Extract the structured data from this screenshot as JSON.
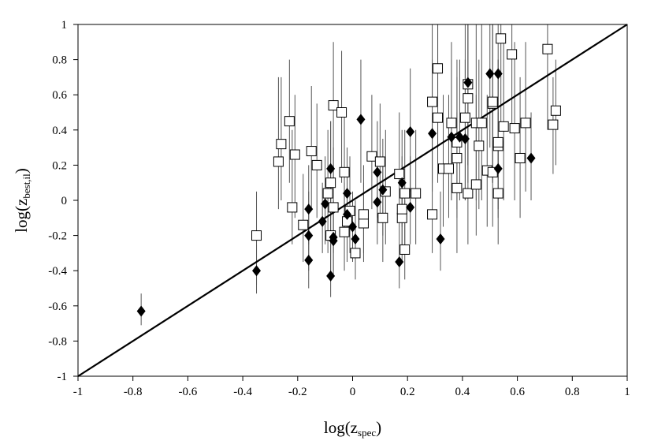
{
  "chart_data": {
    "type": "scatter",
    "title": "",
    "xlabel": {
      "base": "log(z",
      "sub": "spec",
      "close": ")"
    },
    "ylabel": {
      "base": "log(z",
      "sub": "best,il",
      "close": ")"
    },
    "xlim": [
      -1,
      1
    ],
    "ylim": [
      -1,
      1
    ],
    "xticks": [
      "-1",
      "-0.8",
      "-0.6",
      "-0.4",
      "-0.2",
      "0",
      "0.2",
      "0.4",
      "0.6",
      "0.8",
      "1"
    ],
    "yticks": [
      "-1",
      "-0.8",
      "-0.6",
      "-0.4",
      "-0.2",
      "0",
      "0.2",
      "0.4",
      "0.6",
      "0.8",
      "1"
    ],
    "xtick_values": [
      -1,
      -0.8,
      -0.6,
      -0.4,
      -0.2,
      0,
      0.2,
      0.4,
      0.6,
      0.8,
      1
    ],
    "ytick_values": [
      -1,
      -0.8,
      -0.6,
      -0.4,
      -0.2,
      0,
      0.2,
      0.4,
      0.6,
      0.8,
      1
    ],
    "grid": false,
    "reference_line": {
      "from": [
        -1,
        -1
      ],
      "to": [
        1,
        1
      ]
    },
    "series": [
      {
        "marker": "open-square",
        "points": [
          {
            "x": -0.35,
            "y": -0.2,
            "lo": -0.48,
            "hi": 0.05
          },
          {
            "x": -0.27,
            "y": 0.22,
            "lo": -0.05,
            "hi": 0.7
          },
          {
            "x": -0.26,
            "y": 0.32,
            "lo": 0.0,
            "hi": 0.7
          },
          {
            "x": -0.23,
            "y": 0.45,
            "lo": 0.1,
            "hi": 0.8
          },
          {
            "x": -0.22,
            "y": -0.04,
            "lo": -0.25,
            "hi": 0.4
          },
          {
            "x": -0.21,
            "y": 0.26,
            "lo": -0.1,
            "hi": 0.6
          },
          {
            "x": -0.18,
            "y": -0.14,
            "lo": -0.35,
            "hi": 0.15
          },
          {
            "x": -0.15,
            "y": 0.28,
            "lo": -0.05,
            "hi": 0.65
          },
          {
            "x": -0.13,
            "y": 0.2,
            "lo": -0.1,
            "hi": 0.55
          },
          {
            "x": -0.09,
            "y": 0.04,
            "lo": -0.3,
            "hi": 0.4
          },
          {
            "x": -0.08,
            "y": 0.1,
            "lo": -0.2,
            "hi": 0.45
          },
          {
            "x": -0.08,
            "y": -0.2,
            "lo": -0.4,
            "hi": 0.1
          },
          {
            "x": -0.07,
            "y": 0.54,
            "lo": 0.1,
            "hi": 0.9
          },
          {
            "x": -0.07,
            "y": -0.04,
            "lo": -0.3,
            "hi": 0.3
          },
          {
            "x": -0.04,
            "y": 0.5,
            "lo": 0.1,
            "hi": 0.85
          },
          {
            "x": -0.03,
            "y": 0.16,
            "lo": -0.1,
            "hi": 0.5
          },
          {
            "x": -0.03,
            "y": -0.18,
            "lo": -0.4,
            "hi": 0.1
          },
          {
            "x": -0.02,
            "y": -0.12,
            "lo": -0.35,
            "hi": 0.2
          },
          {
            "x": -0.01,
            "y": -0.06,
            "lo": -0.3,
            "hi": 0.25
          },
          {
            "x": 0.01,
            "y": -0.3,
            "lo": -0.45,
            "hi": 0.0
          },
          {
            "x": 0.04,
            "y": -0.13,
            "lo": -0.35,
            "hi": 0.1
          },
          {
            "x": 0.04,
            "y": -0.08,
            "lo": -0.3,
            "hi": 0.2
          },
          {
            "x": 0.07,
            "y": 0.25,
            "lo": -0.05,
            "hi": 0.6
          },
          {
            "x": 0.1,
            "y": 0.22,
            "lo": -0.1,
            "hi": 0.55
          },
          {
            "x": 0.11,
            "y": -0.1,
            "lo": -0.35,
            "hi": 0.2
          },
          {
            "x": 0.12,
            "y": 0.05,
            "lo": -0.25,
            "hi": 0.4
          },
          {
            "x": 0.17,
            "y": 0.15,
            "lo": -0.15,
            "hi": 0.5
          },
          {
            "x": 0.18,
            "y": -0.1,
            "lo": -0.35,
            "hi": 0.2
          },
          {
            "x": 0.18,
            "y": -0.05,
            "lo": -0.3,
            "hi": 0.25
          },
          {
            "x": 0.19,
            "y": -0.28,
            "lo": -0.45,
            "hi": 0.0
          },
          {
            "x": 0.19,
            "y": 0.04,
            "lo": -0.25,
            "hi": 0.4
          },
          {
            "x": 0.23,
            "y": 0.04,
            "lo": -0.25,
            "hi": 0.4
          },
          {
            "x": 0.29,
            "y": -0.08,
            "lo": -0.3,
            "hi": 0.4
          },
          {
            "x": 0.29,
            "y": 0.56,
            "lo": 0.1,
            "hi": 1.0
          },
          {
            "x": 0.31,
            "y": 0.47,
            "lo": 0.1,
            "hi": 1.0
          },
          {
            "x": 0.31,
            "y": 0.75,
            "lo": 0.3,
            "hi": 1.0
          },
          {
            "x": 0.33,
            "y": 0.18,
            "lo": -0.15,
            "hi": 0.6
          },
          {
            "x": 0.35,
            "y": 0.18,
            "lo": -0.1,
            "hi": 0.6
          },
          {
            "x": 0.36,
            "y": 0.44,
            "lo": 0.0,
            "hi": 0.9
          },
          {
            "x": 0.38,
            "y": 0.33,
            "lo": -0.05,
            "hi": 0.8
          },
          {
            "x": 0.38,
            "y": 0.07,
            "lo": -0.3,
            "hi": 0.5
          },
          {
            "x": 0.38,
            "y": 0.24,
            "lo": -0.1,
            "hi": 0.7
          },
          {
            "x": 0.41,
            "y": 0.47,
            "lo": 0.0,
            "hi": 1.0
          },
          {
            "x": 0.42,
            "y": 0.66,
            "lo": 0.2,
            "hi": 1.0
          },
          {
            "x": 0.42,
            "y": 0.58,
            "lo": 0.1,
            "hi": 1.0
          },
          {
            "x": 0.42,
            "y": 0.04,
            "lo": -0.25,
            "hi": 0.5
          },
          {
            "x": 0.45,
            "y": 0.09,
            "lo": -0.2,
            "hi": 0.6
          },
          {
            "x": 0.45,
            "y": 0.44,
            "lo": 0.0,
            "hi": 1.0
          },
          {
            "x": 0.46,
            "y": 0.31,
            "lo": -0.05,
            "hi": 0.8
          },
          {
            "x": 0.47,
            "y": 0.44,
            "lo": 0.0,
            "hi": 1.0
          },
          {
            "x": 0.49,
            "y": 0.17,
            "lo": -0.15,
            "hi": 0.6
          },
          {
            "x": 0.51,
            "y": 0.55,
            "lo": 0.1,
            "hi": 1.0
          },
          {
            "x": 0.51,
            "y": 0.56,
            "lo": 0.1,
            "hi": 1.0
          },
          {
            "x": 0.51,
            "y": 0.16,
            "lo": -0.15,
            "hi": 0.6
          },
          {
            "x": 0.53,
            "y": 0.04,
            "lo": -0.25,
            "hi": 0.5
          },
          {
            "x": 0.53,
            "y": 0.31,
            "lo": -0.05,
            "hi": 0.8
          },
          {
            "x": 0.53,
            "y": 0.33,
            "lo": -0.05,
            "hi": 0.8
          },
          {
            "x": 0.54,
            "y": 0.92,
            "lo": 0.4,
            "hi": 1.0
          },
          {
            "x": 0.55,
            "y": 0.42,
            "lo": 0.0,
            "hi": 0.9
          },
          {
            "x": 0.58,
            "y": 0.83,
            "lo": 0.4,
            "hi": 1.0
          },
          {
            "x": 0.59,
            "y": 0.41,
            "lo": 0.0,
            "hi": 0.9
          },
          {
            "x": 0.61,
            "y": 0.24,
            "lo": -0.1,
            "hi": 0.7
          },
          {
            "x": 0.63,
            "y": 0.44,
            "lo": 0.05,
            "hi": 0.9
          },
          {
            "x": 0.71,
            "y": 0.86,
            "lo": 0.4,
            "hi": 1.0
          },
          {
            "x": 0.73,
            "y": 0.43,
            "lo": 0.15,
            "hi": 0.7
          },
          {
            "x": 0.74,
            "y": 0.51,
            "lo": 0.2,
            "hi": 0.8
          }
        ]
      },
      {
        "marker": "filled-diamond",
        "points": [
          {
            "x": -0.77,
            "y": -0.63,
            "lo": -0.71,
            "hi": -0.53
          },
          {
            "x": -0.35,
            "y": -0.4,
            "lo": -0.53,
            "hi": -0.25
          },
          {
            "x": -0.16,
            "y": -0.05,
            "lo": -0.25,
            "hi": 0.2
          },
          {
            "x": -0.16,
            "y": -0.2,
            "lo": -0.4,
            "hi": 0.05
          },
          {
            "x": -0.16,
            "y": -0.34,
            "lo": -0.5,
            "hi": -0.15
          },
          {
            "x": -0.11,
            "y": -0.12,
            "lo": -0.3,
            "hi": 0.1
          },
          {
            "x": -0.1,
            "y": -0.02,
            "lo": -0.25,
            "hi": 0.25
          },
          {
            "x": -0.08,
            "y": 0.18,
            "lo": -0.1,
            "hi": 0.45
          },
          {
            "x": -0.08,
            "y": -0.43,
            "lo": -0.55,
            "hi": -0.25
          },
          {
            "x": -0.07,
            "y": -0.21,
            "lo": -0.4,
            "hi": 0.0
          },
          {
            "x": -0.07,
            "y": -0.23,
            "lo": -0.42,
            "hi": 0.0
          },
          {
            "x": -0.02,
            "y": 0.04,
            "lo": -0.2,
            "hi": 0.3
          },
          {
            "x": -0.02,
            "y": -0.08,
            "lo": -0.3,
            "hi": 0.15
          },
          {
            "x": 0.0,
            "y": -0.15,
            "lo": -0.35,
            "hi": 0.05
          },
          {
            "x": 0.01,
            "y": -0.22,
            "lo": -0.42,
            "hi": 0.0
          },
          {
            "x": 0.03,
            "y": 0.46,
            "lo": 0.1,
            "hi": 0.8
          },
          {
            "x": 0.09,
            "y": 0.16,
            "lo": -0.1,
            "hi": 0.45
          },
          {
            "x": 0.09,
            "y": -0.01,
            "lo": -0.25,
            "hi": 0.25
          },
          {
            "x": 0.11,
            "y": 0.06,
            "lo": -0.2,
            "hi": 0.35
          },
          {
            "x": 0.17,
            "y": -0.35,
            "lo": -0.5,
            "hi": -0.15
          },
          {
            "x": 0.18,
            "y": 0.1,
            "lo": -0.15,
            "hi": 0.4
          },
          {
            "x": 0.21,
            "y": 0.39,
            "lo": 0.05,
            "hi": 0.75
          },
          {
            "x": 0.21,
            "y": -0.04,
            "lo": -0.25,
            "hi": 0.25
          },
          {
            "x": 0.29,
            "y": 0.38,
            "lo": 0.05,
            "hi": 0.8
          },
          {
            "x": 0.32,
            "y": -0.22,
            "lo": -0.4,
            "hi": 0.05
          },
          {
            "x": 0.36,
            "y": 0.36,
            "lo": 0.0,
            "hi": 0.8
          },
          {
            "x": 0.39,
            "y": 0.36,
            "lo": 0.0,
            "hi": 0.8
          },
          {
            "x": 0.41,
            "y": 0.35,
            "lo": 0.0,
            "hi": 0.8
          },
          {
            "x": 0.42,
            "y": 0.67,
            "lo": 0.2,
            "hi": 1.0
          },
          {
            "x": 0.5,
            "y": 0.72,
            "lo": 0.3,
            "hi": 1.0
          },
          {
            "x": 0.53,
            "y": 0.72,
            "lo": 0.3,
            "hi": 1.0
          },
          {
            "x": 0.53,
            "y": 0.18,
            "lo": -0.1,
            "hi": 0.5
          },
          {
            "x": 0.65,
            "y": 0.24,
            "lo": 0.0,
            "hi": 0.5
          }
        ]
      }
    ]
  }
}
